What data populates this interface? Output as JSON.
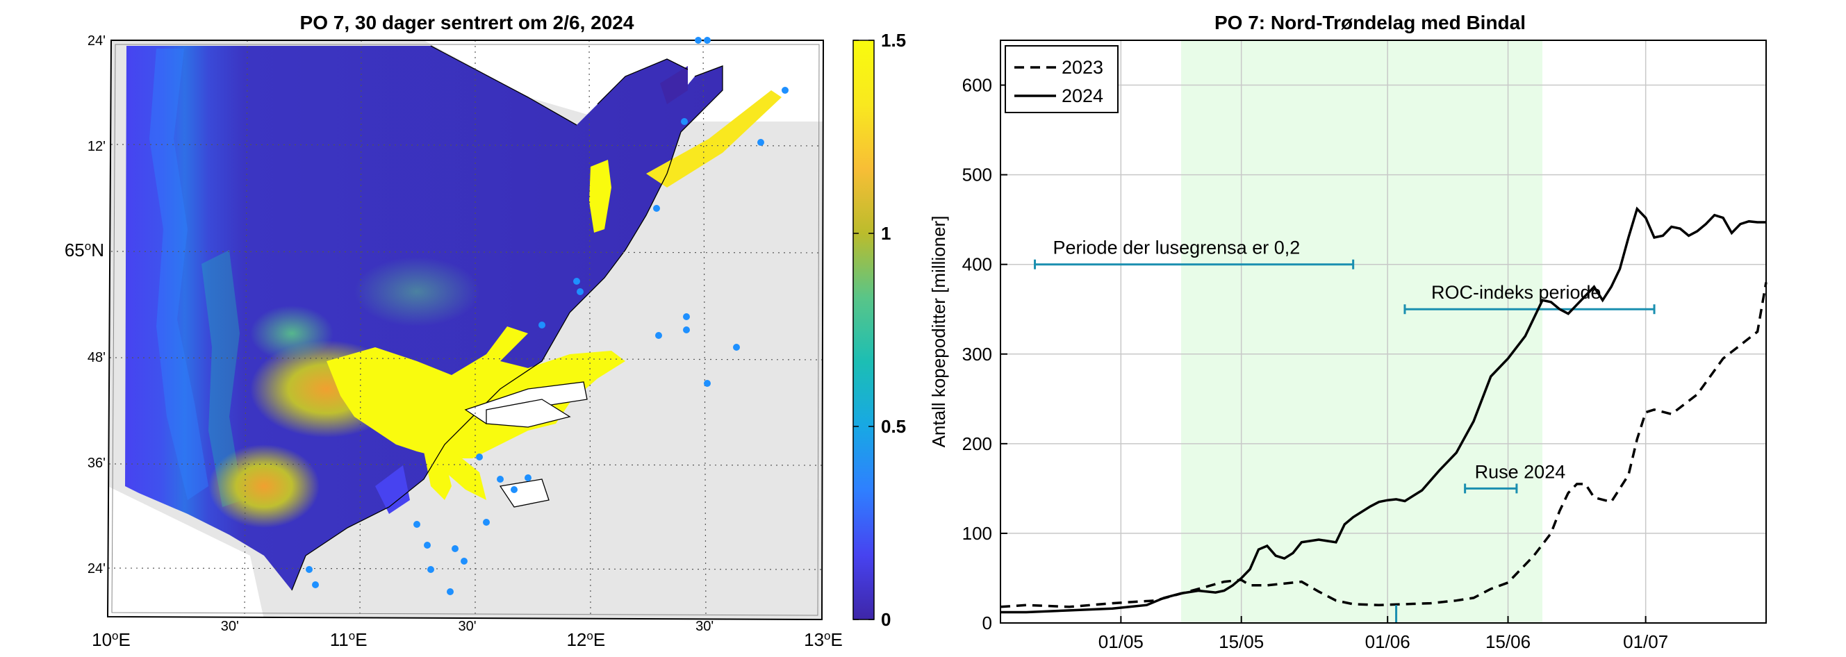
{
  "chart_data": [
    {
      "type": "heatmap",
      "title": "PO 7, 30 dager sentrert om 2/6, 2024",
      "lon_labels": [
        {
          "text": "10",
          "sup": "o",
          "suffix": "E",
          "lon": 10.0
        },
        {
          "text": "11",
          "sup": "o",
          "suffix": "E",
          "lon": 11.0
        },
        {
          "text": "12",
          "sup": "o",
          "suffix": "E",
          "lon": 12.0
        },
        {
          "text": "13",
          "sup": "o",
          "suffix": "E",
          "lon": 13.0
        }
      ],
      "lon_minor_labels": [
        {
          "text": "30'",
          "lon": 10.5
        },
        {
          "text": "30'",
          "lon": 11.5
        },
        {
          "text": "30'",
          "lon": 12.5
        }
      ],
      "lat_labels": [
        {
          "text": "24'",
          "lat": 64.4
        },
        {
          "text": "36'",
          "lat": 64.6
        },
        {
          "text": "48'",
          "lat": 64.8
        },
        {
          "text": "65",
          "sup": "o",
          "suffix": "N",
          "lat": 65.0
        },
        {
          "text": "12'",
          "lat": 65.2
        },
        {
          "text": "24'",
          "lat": 65.4
        }
      ],
      "colorbar": {
        "range": [
          0,
          1.5
        ],
        "ticks": [
          {
            "value": 0,
            "label": "0"
          },
          {
            "value": 0.5,
            "label": "0.5"
          },
          {
            "value": 1,
            "label": "1"
          },
          {
            "value": 1.5,
            "label": "1.5"
          }
        ],
        "colors": [
          "#3e26a8",
          "#4743f0",
          "#2f7fff",
          "#18a8e4",
          "#1cbeb4",
          "#59c588",
          "#bbbc2c",
          "#f7be36",
          "#f9e81f",
          "#f9fb0e"
        ]
      },
      "land_color": "#e6e6e6",
      "station_color": "#1e90ff"
    },
    {
      "type": "line",
      "title": "PO 7: Nord-Trøndelag med Bindal",
      "xlabel": "",
      "ylabel": "Antall kopepoditter [millioner]",
      "x_range": [
        "2024-04-17",
        "2024-07-15"
      ],
      "ylim": [
        0,
        650
      ],
      "yticks": [
        0,
        100,
        200,
        300,
        400,
        500,
        600
      ],
      "xticks": [
        {
          "label": "01/05",
          "date": "2024-05-01"
        },
        {
          "label": "15/05",
          "date": "2024-05-15"
        },
        {
          "label": "01/06",
          "date": "2024-06-01"
        },
        {
          "label": "15/06",
          "date": "2024-06-15"
        },
        {
          "label": "01/07",
          "date": "2024-07-01"
        }
      ],
      "grid": true,
      "legend_position": "top-left",
      "shaded_period": {
        "start": "2024-05-08",
        "end": "2024-06-19",
        "color": "#e8fce8"
      },
      "series": [
        {
          "name": "2023",
          "style": "dashed",
          "x": [
            "2024-04-17",
            "2024-04-20",
            "2024-04-25",
            "2024-04-30",
            "2024-05-05",
            "2024-05-10",
            "2024-05-13",
            "2024-05-14",
            "2024-05-15",
            "2024-05-16",
            "2024-05-18",
            "2024-05-21",
            "2024-05-22",
            "2024-05-24",
            "2024-05-26",
            "2024-05-28",
            "2024-05-31",
            "2024-06-03",
            "2024-06-06",
            "2024-06-08",
            "2024-06-09",
            "2024-06-11",
            "2024-06-13",
            "2024-06-15",
            "2024-06-18",
            "2024-06-20",
            "2024-06-21",
            "2024-06-22",
            "2024-06-23",
            "2024-06-24",
            "2024-06-25",
            "2024-06-27",
            "2024-06-29",
            "2024-06-30",
            "2024-07-01",
            "2024-07-02",
            "2024-07-04",
            "2024-07-07",
            "2024-07-10",
            "2024-07-12",
            "2024-07-14",
            "2024-07-15"
          ],
          "y": [
            18,
            20,
            18,
            22,
            25,
            38,
            46,
            47,
            48,
            42,
            42,
            45,
            46,
            35,
            25,
            21,
            20,
            21,
            22,
            24,
            25,
            28,
            38,
            45,
            75,
            100,
            125,
            145,
            155,
            155,
            140,
            135,
            165,
            205,
            235,
            238,
            233,
            255,
            295,
            310,
            325,
            380
          ]
        },
        {
          "name": "2024",
          "style": "solid",
          "x": [
            "2024-04-17",
            "2024-04-20",
            "2024-04-25",
            "2024-04-30",
            "2024-05-02",
            "2024-05-04",
            "2024-05-06",
            "2024-05-08",
            "2024-05-10",
            "2024-05-12",
            "2024-05-13",
            "2024-05-14",
            "2024-05-15",
            "2024-05-16",
            "2024-05-17",
            "2024-05-18",
            "2024-05-19",
            "2024-05-20",
            "2024-05-21",
            "2024-05-22",
            "2024-05-24",
            "2024-05-26",
            "2024-05-27",
            "2024-05-28",
            "2024-05-30",
            "2024-05-31",
            "2024-06-01",
            "2024-06-02",
            "2024-06-03",
            "2024-06-05",
            "2024-06-07",
            "2024-06-09",
            "2024-06-11",
            "2024-06-13",
            "2024-06-15",
            "2024-06-17",
            "2024-06-19",
            "2024-06-20",
            "2024-06-21",
            "2024-06-22",
            "2024-06-23",
            "2024-06-24",
            "2024-06-25",
            "2024-06-26",
            "2024-06-27",
            "2024-06-28",
            "2024-06-29",
            "2024-06-30",
            "2024-07-01",
            "2024-07-02",
            "2024-07-03",
            "2024-07-04",
            "2024-07-05",
            "2024-07-06",
            "2024-07-07",
            "2024-07-08",
            "2024-07-09",
            "2024-07-10",
            "2024-07-11",
            "2024-07-12",
            "2024-07-13",
            "2024-07-14",
            "2024-07-15"
          ],
          "y": [
            12,
            12,
            14,
            16,
            18,
            20,
            28,
            33,
            36,
            34,
            36,
            42,
            50,
            60,
            82,
            86,
            75,
            72,
            78,
            90,
            93,
            90,
            110,
            118,
            130,
            135,
            137,
            138,
            136,
            148,
            170,
            190,
            225,
            275,
            295,
            320,
            360,
            358,
            350,
            345,
            355,
            365,
            375,
            360,
            375,
            395,
            430,
            462,
            452,
            430,
            432,
            442,
            440,
            432,
            437,
            445,
            455,
            452,
            435,
            445,
            448,
            447,
            447
          ]
        }
      ],
      "annotations": [
        {
          "text": "Periode der lusegrensa er 0,2",
          "start": "2024-04-21",
          "end": "2024-05-28",
          "y": 400
        },
        {
          "text": "ROC-indeks periode",
          "start": "2024-06-03",
          "end": "2024-07-02",
          "y": 350
        },
        {
          "text": "Ruse 2024",
          "start": "2024-06-10",
          "end": "2024-06-16",
          "y": 150
        }
      ],
      "annotation_color": "#1a8fb0",
      "marker": {
        "date": "2024-06-02",
        "y_from": 0,
        "y_to": 20
      }
    }
  ]
}
